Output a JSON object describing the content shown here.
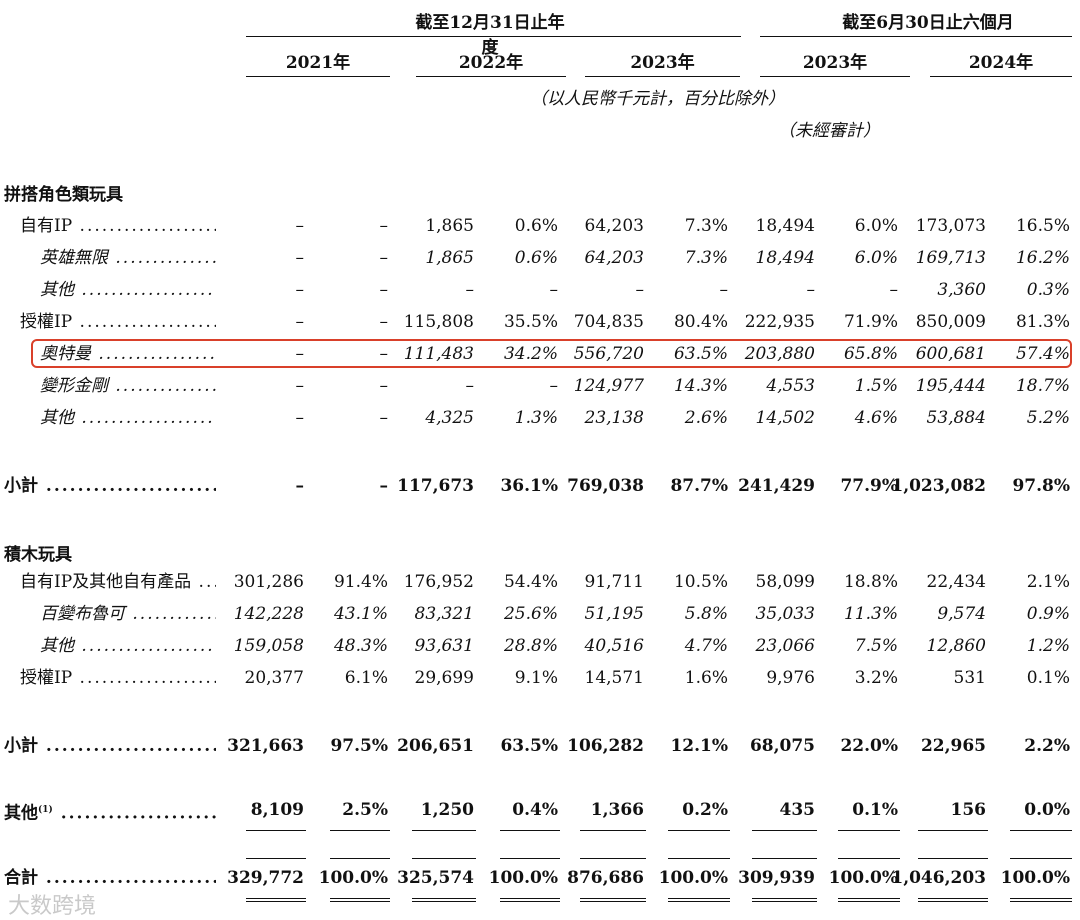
{
  "header": {
    "group_fy": "截至12月31日止年度",
    "group_h1": "截至6月30日止六個月",
    "years": [
      "2021年",
      "2022年",
      "2023年",
      "2023年",
      "2024年"
    ],
    "unit_note": "（以人民幣千元計，百分比除外）",
    "unaudited": "（未經審計）"
  },
  "sections": {
    "assembly": "拼搭角色類玩具",
    "blocks": "積木玩具"
  },
  "rows": [
    {
      "label": "自有IP",
      "style": "",
      "cells": [
        "–",
        "–",
        "1,865",
        "0.6%",
        "64,203",
        "7.3%",
        "18,494",
        "6.0%",
        "173,073",
        "16.5%"
      ]
    },
    {
      "label": "英雄無限",
      "style": "italic",
      "cells": [
        "–",
        "–",
        "1,865",
        "0.6%",
        "64,203",
        "7.3%",
        "18,494",
        "6.0%",
        "169,713",
        "16.2%"
      ]
    },
    {
      "label": "其他",
      "style": "italic",
      "cells": [
        "–",
        "–",
        "–",
        "–",
        "–",
        "–",
        "–",
        "–",
        "3,360",
        "0.3%"
      ]
    },
    {
      "label": "授權IP",
      "style": "",
      "cells": [
        "–",
        "–",
        "115,808",
        "35.5%",
        "704,835",
        "80.4%",
        "222,935",
        "71.9%",
        "850,009",
        "81.3%"
      ]
    },
    {
      "label": "奧特曼",
      "style": "italic",
      "cells": [
        "–",
        "–",
        "111,483",
        "34.2%",
        "556,720",
        "63.5%",
        "203,880",
        "65.8%",
        "600,681",
        "57.4%"
      ]
    },
    {
      "label": "變形金剛",
      "style": "italic",
      "cells": [
        "–",
        "–",
        "–",
        "–",
        "124,977",
        "14.3%",
        "4,553",
        "1.5%",
        "195,444",
        "18.7%"
      ]
    },
    {
      "label": "其他",
      "style": "italic",
      "cells": [
        "–",
        "–",
        "4,325",
        "1.3%",
        "23,138",
        "2.6%",
        "14,502",
        "4.6%",
        "53,884",
        "5.2%"
      ]
    },
    {
      "label": "小計",
      "style": "bold",
      "cells": [
        "–",
        "–",
        "117,673",
        "36.1%",
        "769,038",
        "87.7%",
        "241,429",
        "77.9%",
        "1,023,082",
        "97.8%"
      ]
    },
    {
      "label": "自有IP及其他自有產品",
      "style": "",
      "cells": [
        "301,286",
        "91.4%",
        "176,952",
        "54.4%",
        "91,711",
        "10.5%",
        "58,099",
        "18.8%",
        "22,434",
        "2.1%"
      ]
    },
    {
      "label": "百變布魯可",
      "style": "italic",
      "cells": [
        "142,228",
        "43.1%",
        "83,321",
        "25.6%",
        "51,195",
        "5.8%",
        "35,033",
        "11.3%",
        "9,574",
        "0.9%"
      ]
    },
    {
      "label": "其他",
      "style": "italic",
      "cells": [
        "159,058",
        "48.3%",
        "93,631",
        "28.8%",
        "40,516",
        "4.7%",
        "23,066",
        "7.5%",
        "12,860",
        "1.2%"
      ]
    },
    {
      "label": "授權IP",
      "style": "",
      "cells": [
        "20,377",
        "6.1%",
        "29,699",
        "9.1%",
        "14,571",
        "1.6%",
        "9,976",
        "3.2%",
        "531",
        "0.1%"
      ]
    },
    {
      "label": "小計",
      "style": "bold",
      "cells": [
        "321,663",
        "97.5%",
        "206,651",
        "63.5%",
        "106,282",
        "12.1%",
        "68,075",
        "22.0%",
        "22,965",
        "2.2%"
      ]
    },
    {
      "label": "其他",
      "sup": "(1)",
      "style": "bold",
      "cells": [
        "8,109",
        "2.5%",
        "1,250",
        "0.4%",
        "1,366",
        "0.2%",
        "435",
        "0.1%",
        "156",
        "0.0%"
      ]
    },
    {
      "label": "合計",
      "style": "bold",
      "cells": [
        "329,772",
        "100.0%",
        "325,574",
        "100.0%",
        "876,686",
        "100.0%",
        "309,939",
        "100.0%",
        "1,046,203",
        "100.0%"
      ]
    }
  ],
  "watermark": "大数跨境",
  "highlight_color": "#d9402a"
}
